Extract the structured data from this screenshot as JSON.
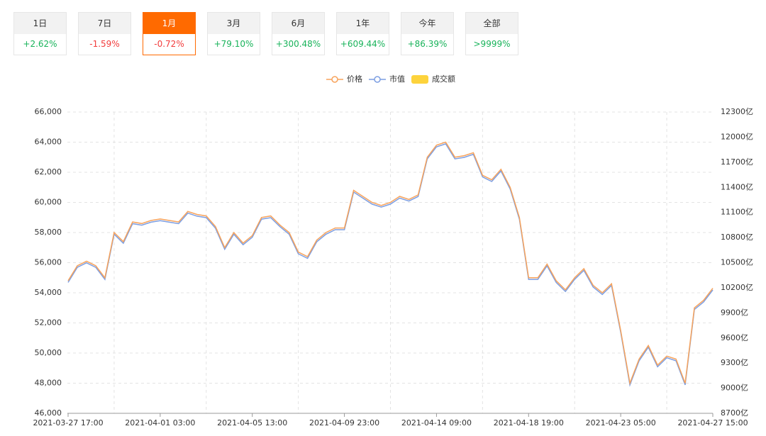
{
  "tabs": [
    {
      "label": "1日",
      "change": "+2.62%"
    },
    {
      "label": "7日",
      "change": "-1.59%"
    },
    {
      "label": "1月",
      "change": "-0.72%"
    },
    {
      "label": "3月",
      "change": "+79.10%"
    },
    {
      "label": "6月",
      "change": "+300.48%"
    },
    {
      "label": "1年",
      "change": "+609.44%"
    },
    {
      "label": "今年",
      "change": "+86.39%"
    },
    {
      "label": "全部",
      "change": ">9999%"
    }
  ],
  "active_tab": 2,
  "chart_data": {
    "type": "line",
    "categories": [
      "2021-03-27 17:00",
      null,
      null,
      null,
      null,
      null,
      null,
      null,
      null,
      null,
      "2021-04-01 03:00",
      null,
      null,
      null,
      null,
      null,
      null,
      null,
      null,
      null,
      "2021-04-05 13:00",
      null,
      null,
      null,
      null,
      null,
      null,
      null,
      null,
      null,
      "2021-04-09 23:00",
      null,
      null,
      null,
      null,
      null,
      null,
      null,
      null,
      null,
      "2021-04-14 09:00",
      null,
      null,
      null,
      null,
      null,
      null,
      null,
      null,
      null,
      "2021-04-18 19:00",
      null,
      null,
      null,
      null,
      null,
      null,
      null,
      null,
      null,
      "2021-04-23 05:00",
      null,
      null,
      null,
      null,
      null,
      null,
      null,
      null,
      null,
      "2021-04-27 15:00"
    ],
    "series": [
      {
        "name": "价格",
        "color": "#f7a35c",
        "values": [
          54800,
          55800,
          56100,
          55800,
          55000,
          58000,
          57400,
          58700,
          58600,
          58800,
          58900,
          58800,
          58700,
          59400,
          59200,
          59100,
          58400,
          57000,
          58000,
          57300,
          57800,
          59000,
          59100,
          58500,
          58000,
          56700,
          56400,
          57500,
          58000,
          58300,
          58300,
          60800,
          60400,
          60000,
          59800,
          60000,
          60400,
          60200,
          60500,
          63000,
          63800,
          64000,
          63000,
          63100,
          63300,
          61800,
          61500,
          62200,
          61000,
          59000,
          55000,
          55000,
          55900,
          54800,
          54200,
          55000,
          55600,
          54500,
          54000,
          54600,
          51500,
          48000,
          49600,
          50500,
          49200,
          49800,
          49600,
          48000,
          53000,
          53500,
          54300
        ]
      },
      {
        "name": "市值",
        "color": "#7c9ee2",
        "axis": "y2",
        "values": [
          10264,
          10444,
          10498,
          10444,
          10300,
          10840,
          10732,
          10966,
          10948,
          10984,
          11002,
          10984,
          10966,
          11092,
          11056,
          11038,
          10912,
          10660,
          10840,
          10714,
          10804,
          11020,
          11038,
          10930,
          10840,
          10606,
          10552,
          10750,
          10840,
          10894,
          10894,
          11344,
          11272,
          11200,
          11164,
          11200,
          11272,
          11236,
          11290,
          11740,
          11884,
          11920,
          11740,
          11758,
          11794,
          11524,
          11470,
          11596,
          11380,
          11020,
          10300,
          10300,
          10462,
          10264,
          10156,
          10300,
          10408,
          10210,
          10120,
          10228,
          9670,
          9040,
          9328,
          9490,
          9256,
          9364,
          9328,
          9040,
          9940,
          10030,
          10174
        ]
      }
    ],
    "legend_only": [
      {
        "name": "成交额",
        "color": "#fdd33c"
      }
    ],
    "ylim": [
      46000,
      66000
    ],
    "yticks": [
      {
        "value": 46000,
        "label": "46,000"
      },
      {
        "value": 48000,
        "label": "48,000"
      },
      {
        "value": 50000,
        "label": "50,000"
      },
      {
        "value": 52000,
        "label": "52,000"
      },
      {
        "value": 54000,
        "label": "54,000"
      },
      {
        "value": 56000,
        "label": "56,000"
      },
      {
        "value": 58000,
        "label": "58,000"
      },
      {
        "value": 60000,
        "label": "60,000"
      },
      {
        "value": 62000,
        "label": "62,000"
      },
      {
        "value": 64000,
        "label": "64,000"
      },
      {
        "value": 66000,
        "label": "66,000"
      }
    ],
    "y2lim": [
      8700,
      12300
    ],
    "y2ticks": [
      {
        "value": 8700,
        "label": "8700亿"
      },
      {
        "value": 9000,
        "label": "9000亿"
      },
      {
        "value": 9300,
        "label": "9300亿"
      },
      {
        "value": 9600,
        "label": "9600亿"
      },
      {
        "value": 9900,
        "label": "9900亿"
      },
      {
        "value": 10200,
        "label": "10200亿"
      },
      {
        "value": 10500,
        "label": "10500亿"
      },
      {
        "value": 10800,
        "label": "10800亿"
      },
      {
        "value": 11100,
        "label": "11100亿"
      },
      {
        "value": 11400,
        "label": "11400亿"
      },
      {
        "value": 11700,
        "label": "11700亿"
      },
      {
        "value": 12000,
        "label": "12000亿"
      },
      {
        "value": 12300,
        "label": "12300亿"
      }
    ],
    "grid": true
  }
}
